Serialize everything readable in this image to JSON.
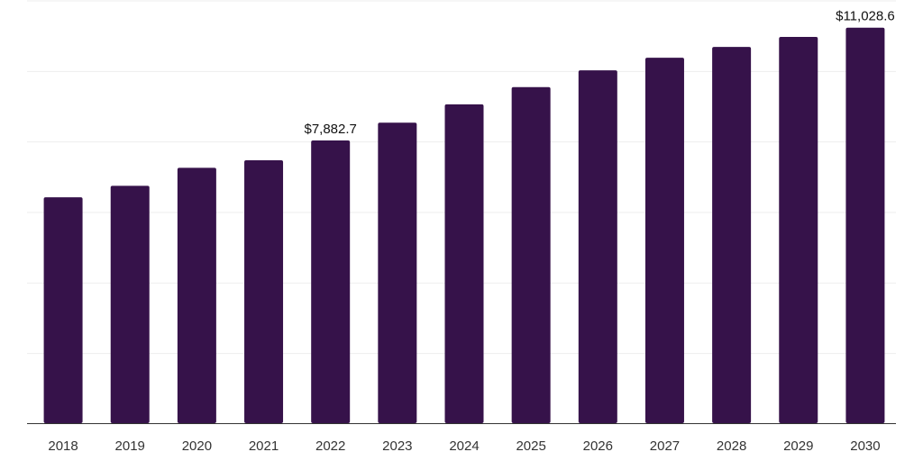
{
  "chart_data": {
    "type": "bar",
    "categories": [
      "2018",
      "2019",
      "2020",
      "2021",
      "2022",
      "2023",
      "2024",
      "2025",
      "2026",
      "2027",
      "2028",
      "2029",
      "2030"
    ],
    "values": [
      6300,
      6620,
      7120,
      7330,
      7882.7,
      8380,
      8890,
      9370,
      9840,
      10190,
      10490,
      10770,
      11028.6
    ],
    "data_labels": [
      {
        "index": 4,
        "text": "$7,882.7"
      },
      {
        "index": 12,
        "text": "$11,028.6"
      }
    ],
    "title": "",
    "xlabel": "",
    "ylabel": "",
    "ylim": [
      0,
      11800
    ],
    "grid": true,
    "legend": "none",
    "bar_color": "#36124a"
  }
}
